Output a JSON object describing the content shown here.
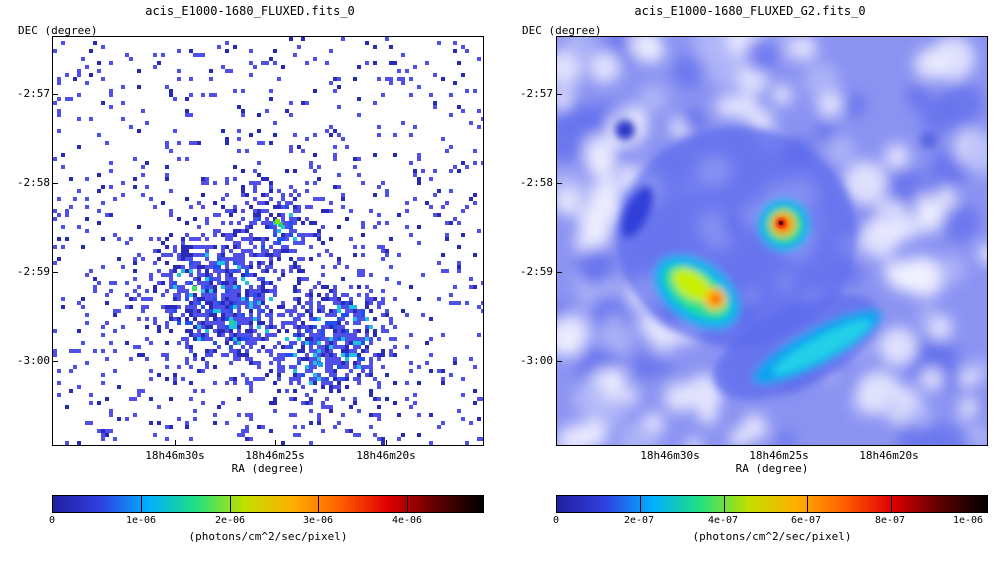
{
  "panels": [
    {
      "title": "acis_E1000-1680_FLUXED.fits_0",
      "ylabel": "DEC (degree)",
      "xlabel": "RA (degree)",
      "yticks": [
        "-2:57",
        "-2:58",
        "-2:59",
        "-3:00"
      ],
      "xticks": [
        "18h46m30s",
        "18h46m25s",
        "18h46m20s"
      ],
      "colorbar": {
        "ticks": [
          "0",
          "1e-06",
          "2e-06",
          "3e-06",
          "4e-06"
        ],
        "label": "(photons/cm^2/sec/pixel)",
        "colors": [
          "#2020a0",
          "#3040e0",
          "#00b0ff",
          "#20e080",
          "#c0e000",
          "#ffb000",
          "#ff6000",
          "#e00000",
          "#600000",
          "#000000"
        ]
      }
    },
    {
      "title": "acis_E1000-1680_FLUXED_G2.fits_0",
      "ylabel": "DEC (degree)",
      "xlabel": "RA (degree)",
      "yticks": [
        "-2:57",
        "-2:58",
        "-2:59",
        "-3:00"
      ],
      "xticks": [
        "18h46m30s",
        "18h46m25s",
        "18h46m20s"
      ],
      "colorbar": {
        "ticks": [
          "0",
          "2e-07",
          "4e-07",
          "6e-07",
          "8e-07",
          "1e-06"
        ],
        "label": "(photons/cm^2/sec/pixel)",
        "colors": [
          "#2020a0",
          "#3040e0",
          "#00b0ff",
          "#20e080",
          "#c0e000",
          "#ffb000",
          "#ff6000",
          "#e00000",
          "#600000",
          "#000000"
        ]
      }
    }
  ]
}
